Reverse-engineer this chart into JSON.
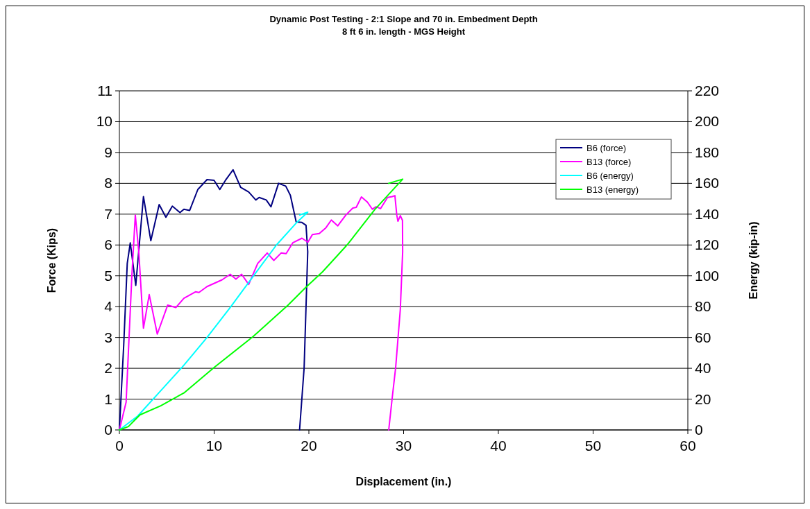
{
  "chart_data": {
    "type": "line",
    "title": "Dynamic Post Testing - 2:1 Slope and 70 in. Embedment Depth",
    "subtitle": "8 ft 6 in. length - MGS Height",
    "xlabel": "Displacement (in.)",
    "ylabel": "Force (Kips)",
    "y2label": "Energy (kip-in)",
    "xlim": [
      0,
      60
    ],
    "xticks": [
      0,
      10,
      20,
      30,
      40,
      50,
      60
    ],
    "ylim": [
      0,
      11
    ],
    "yticks": [
      0,
      1,
      2,
      3,
      4,
      5,
      6,
      7,
      8,
      9,
      10,
      11
    ],
    "y2lim": [
      0,
      220
    ],
    "y2ticks": [
      0,
      20,
      40,
      60,
      80,
      100,
      120,
      140,
      160,
      180,
      200,
      220
    ],
    "grid": "y",
    "legend": "top right",
    "marker": "none",
    "line_style": "solid",
    "series": [
      {
        "name": "B6 (force)",
        "color": "#000080",
        "x": [
          0,
          0.46,
          0.83,
          1.15,
          1.73,
          2.54,
          3.32,
          4.2,
          4.91,
          5.59,
          6.4,
          6.81,
          7.42,
          8.28,
          9.25,
          9.99,
          10.6,
          11.2,
          12.0,
          12.8,
          13.65,
          14.4,
          14.75,
          15.5,
          16.0,
          16.8,
          17.56,
          18.05,
          18.66,
          19.27,
          19.7,
          19.88,
          19.5,
          19.02
        ],
        "values": [
          0,
          2.77,
          5.4,
          6.07,
          4.69,
          7.57,
          6.14,
          7.31,
          6.9,
          7.26,
          7.05,
          7.16,
          7.12,
          7.8,
          8.12,
          8.1,
          7.8,
          8.1,
          8.44,
          7.87,
          7.72,
          7.46,
          7.54,
          7.46,
          7.24,
          8.0,
          7.91,
          7.61,
          6.75,
          6.73,
          6.64,
          5.78,
          2.02,
          0
        ]
      },
      {
        "name": "B13 (force)",
        "color": "#ff00ff",
        "x": [
          0,
          0.71,
          1.32,
          1.68,
          2.05,
          2.54,
          3.15,
          4.0,
          5.1,
          5.96,
          6.81,
          8.03,
          8.4,
          9.25,
          10.84,
          11.7,
          12.3,
          12.9,
          13.65,
          14.6,
          15.6,
          16.3,
          17.07,
          17.6,
          18.3,
          19.27,
          19.9,
          20.37,
          21.1,
          21.8,
          22.37,
          23.05,
          23.9,
          24.64,
          25.0,
          25.55,
          26.18,
          26.7,
          27.1,
          27.57,
          28.3,
          28.8,
          29.08,
          29.28,
          29.4,
          29.65,
          29.88,
          29.9,
          29.65,
          29.16,
          28.8,
          28.43
        ],
        "values": [
          0,
          0.9,
          5.02,
          6.97,
          5.77,
          3.3,
          4.39,
          3.11,
          4.05,
          3.97,
          4.27,
          4.48,
          4.46,
          4.65,
          4.87,
          5.05,
          4.89,
          5.05,
          4.72,
          5.4,
          5.74,
          5.5,
          5.74,
          5.72,
          6.07,
          6.22,
          6.09,
          6.34,
          6.37,
          6.56,
          6.81,
          6.62,
          6.97,
          7.2,
          7.22,
          7.56,
          7.39,
          7.16,
          7.24,
          7.18,
          7.54,
          7.57,
          7.6,
          6.97,
          6.77,
          6.95,
          6.8,
          5.78,
          3.9,
          2.02,
          1.05,
          0
        ]
      },
      {
        "name": "B6 (energy)",
        "color": "#00ffff",
        "axis": "y2",
        "x": [
          0,
          1.93,
          4.37,
          6.81,
          9.25,
          11.7,
          14.14,
          16.58,
          18.78,
          19.88,
          19.03
        ],
        "values": [
          0,
          9,
          25.5,
          42,
          60,
          79.5,
          99.8,
          120,
          135,
          141.3,
          139.5
        ]
      },
      {
        "name": "B13 (energy)",
        "color": "#00ff00",
        "axis": "y2",
        "x": [
          0,
          0.95,
          2.17,
          4.37,
          6.81,
          9.99,
          14.14,
          17.8,
          19.63,
          21.46,
          24.03,
          26.96,
          29.9,
          28.43
        ],
        "values": [
          0,
          2.2,
          9.8,
          15.7,
          24,
          40.5,
          60.7,
          81,
          92.2,
          102.7,
          120,
          143,
          162.7,
          160
        ]
      }
    ]
  }
}
